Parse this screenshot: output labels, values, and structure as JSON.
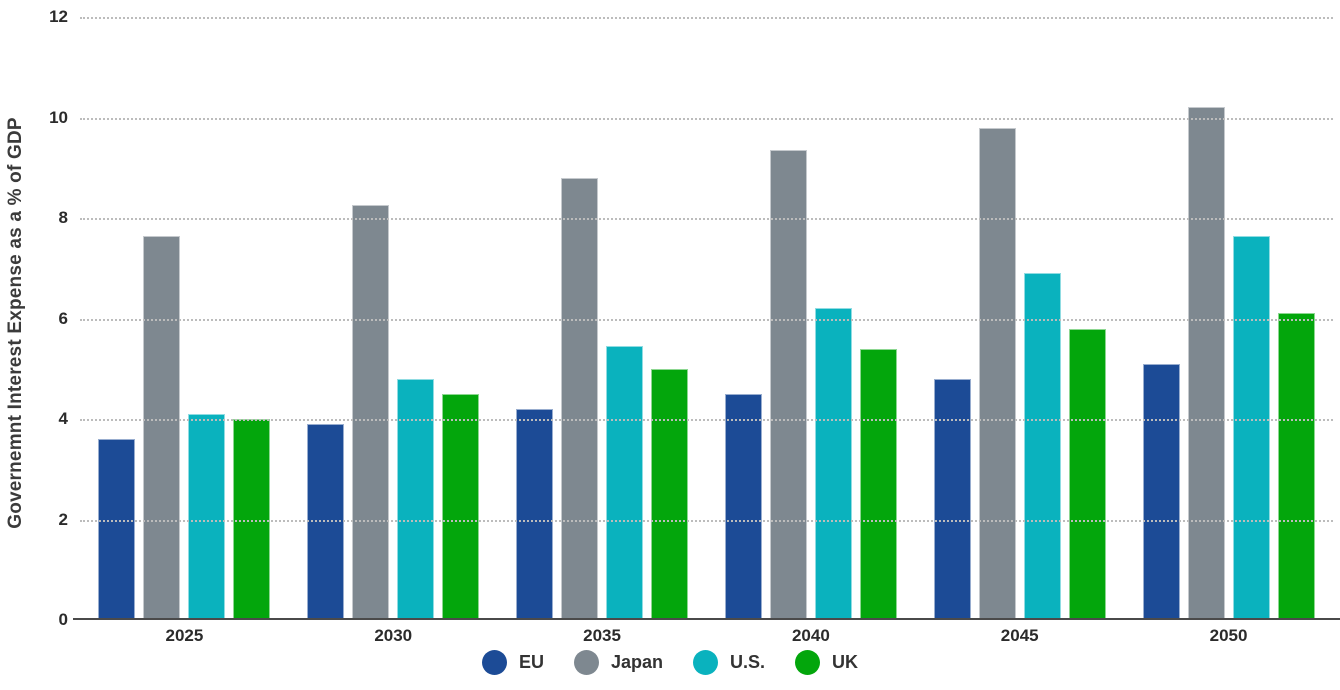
{
  "chart_data": {
    "type": "bar",
    "title": "",
    "xlabel": "",
    "ylabel": "Governemnt Interest Expense as a % of GDP",
    "ylim": [
      0,
      12
    ],
    "yticks": [
      0,
      2,
      4,
      6,
      8,
      10,
      12
    ],
    "grid": "horizontal dotted gridlines at each ytick, solid baseline at 0",
    "legend_position": "bottom-center",
    "categories": [
      "2025",
      "2030",
      "2035",
      "2040",
      "2045",
      "2050"
    ],
    "series": [
      {
        "name": "EU",
        "color": "#1C4B96",
        "values": [
          3.6,
          3.9,
          4.2,
          4.5,
          4.8,
          5.1
        ]
      },
      {
        "name": "Japan",
        "color": "#7E8890",
        "values": [
          7.65,
          8.25,
          8.8,
          9.35,
          9.8,
          10.2
        ]
      },
      {
        "name": "U.S.",
        "color": "#0AB2BE",
        "values": [
          4.1,
          4.8,
          5.45,
          6.2,
          6.9,
          7.65
        ]
      },
      {
        "name": "UK",
        "color": "#03A60C",
        "values": [
          4.0,
          4.5,
          5.0,
          5.4,
          5.8,
          6.1
        ]
      }
    ]
  },
  "colors": {
    "background": "#ffffff",
    "gridline": "#bcbcbc",
    "axis_line": "#4a4a4a",
    "tick_text": "#2b2b2b",
    "axis_title_text": "#3b3b3b",
    "legend_text": "#333333"
  }
}
